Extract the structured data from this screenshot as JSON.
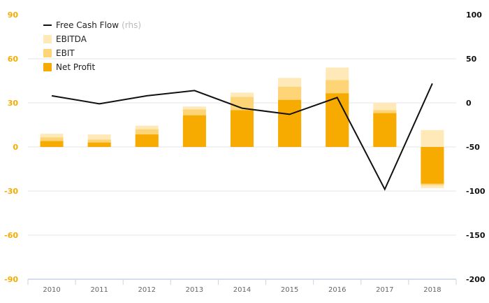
{
  "chart_data": {
    "type": "bar",
    "categories": [
      "2010",
      "2011",
      "2012",
      "2013",
      "2014",
      "2015",
      "2016",
      "2017",
      "2018"
    ],
    "series": [
      {
        "name": "EBITDA",
        "values": [
          9,
          8.5,
          14.5,
          27.5,
          37,
          47,
          54,
          30,
          11.5
        ],
        "min_values": [
          null,
          null,
          null,
          null,
          null,
          null,
          null,
          null,
          -28
        ]
      },
      {
        "name": "EBIT",
        "values": [
          6.5,
          5,
          12,
          25.5,
          34,
          41,
          45.5,
          25,
          null
        ],
        "min_values": [
          null,
          null,
          null,
          null,
          null,
          null,
          null,
          null,
          -26
        ]
      },
      {
        "name": "Net Profit",
        "values": [
          4,
          3,
          8.5,
          21.5,
          25,
          32,
          36.5,
          23,
          -25
        ]
      },
      {
        "name": "Free Cash Flow",
        "axis": "right",
        "type": "line",
        "values": [
          8,
          -1,
          8,
          14,
          -6,
          -13,
          6,
          -98,
          22
        ]
      }
    ],
    "legend": [
      {
        "label": "Free Cash Flow",
        "suffix": "(rhs)",
        "marker": "line"
      },
      {
        "label": "EBITDA",
        "suffix": "",
        "marker": "box"
      },
      {
        "label": "EBIT",
        "suffix": "",
        "marker": "box"
      },
      {
        "label": "Net Profit",
        "suffix": "",
        "marker": "box"
      }
    ],
    "legend_position": "top-left",
    "left_axis": {
      "ylim": [
        -90,
        90
      ],
      "ticks": [
        "90",
        "60",
        "30",
        "0",
        "-30",
        "-60",
        "-90"
      ]
    },
    "right_axis": {
      "ylim": [
        -200,
        100
      ],
      "ticks": [
        "100",
        "50",
        "0",
        "-50",
        "-100",
        "-150",
        "-200"
      ]
    },
    "grid": true,
    "colors": {
      "ebitda": "#FFE9B8",
      "ebit": "#FDD476",
      "net_profit": "#F7AB00",
      "line": "#111111",
      "left_tick": "#F7AB00",
      "right_tick": "#111111",
      "grid": "#E6E6E6",
      "x_tick": "#666666",
      "legend_suffix": "#BBBBBB",
      "axis": "#C9D4E8"
    }
  }
}
